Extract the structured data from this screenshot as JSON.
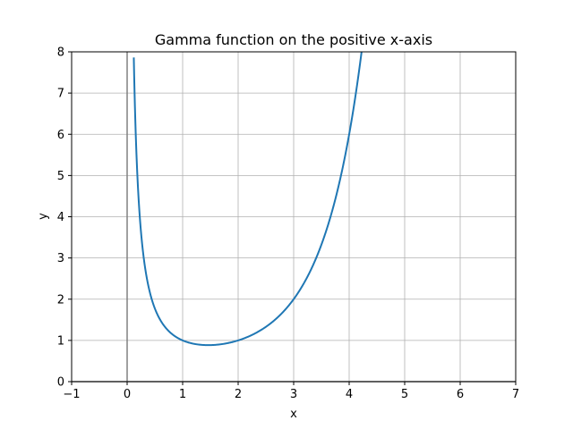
{
  "chart_data": {
    "type": "line",
    "title": "Gamma function on the positive x-axis",
    "xlabel": "x",
    "ylabel": "y",
    "xlim": [
      -1,
      7
    ],
    "ylim": [
      0,
      8
    ],
    "xticks": [
      -1,
      0,
      1,
      2,
      3,
      4,
      5,
      6,
      7
    ],
    "xtick_labels": [
      "−1",
      "0",
      "1",
      "2",
      "3",
      "4",
      "5",
      "6",
      "7"
    ],
    "yticks": [
      0,
      1,
      2,
      3,
      4,
      5,
      6,
      7,
      8
    ],
    "ytick_labels": [
      "0",
      "1",
      "2",
      "3",
      "4",
      "5",
      "6",
      "7",
      "8"
    ],
    "grid": true,
    "reference_lines": [
      {
        "orientation": "vertical",
        "x": 0,
        "color": "#808080"
      },
      {
        "orientation": "horizontal",
        "y": 0,
        "color": "#808080"
      }
    ],
    "series": [
      {
        "color": "#1f77b4",
        "function": "gamma",
        "x_range": [
          0.12,
          4.23
        ],
        "x": [
          0.125,
          0.15,
          0.2,
          0.25,
          0.3,
          0.4,
          0.5,
          0.6,
          0.7,
          0.8,
          0.9,
          1.0,
          1.2,
          1.4616,
          1.6,
          1.8,
          2.0,
          2.2,
          2.5,
          2.8,
          3.0,
          3.3,
          3.6,
          3.8,
          4.0,
          4.2,
          4.23
        ],
        "y": [
          7.53,
          6.22,
          4.59,
          3.63,
          2.99,
          2.22,
          1.77,
          1.49,
          1.3,
          1.16,
          1.07,
          1.0,
          0.918,
          0.886,
          0.894,
          0.931,
          1.0,
          1.1,
          1.33,
          1.68,
          2.0,
          2.68,
          3.72,
          4.69,
          6.0,
          7.76,
          8.0
        ]
      }
    ]
  }
}
